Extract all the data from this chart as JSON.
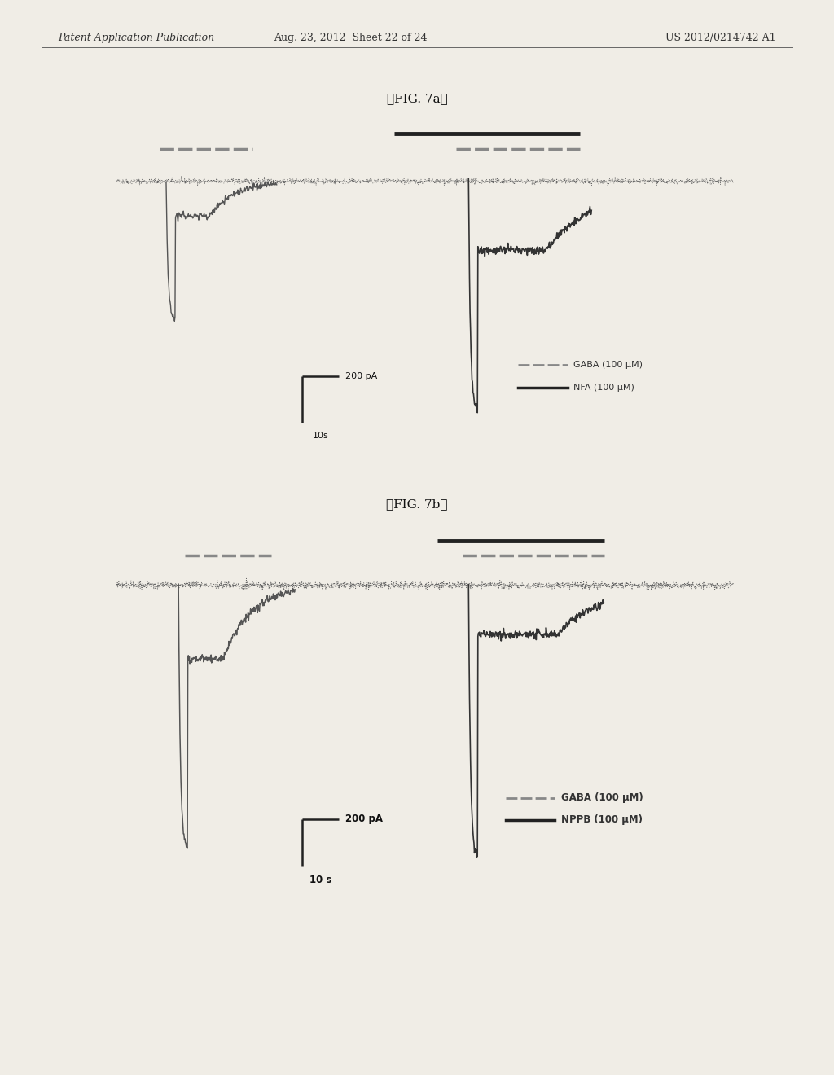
{
  "header_left": "Patent Application Publication",
  "header_mid": "Aug. 23, 2012  Sheet 22 of 24",
  "header_right": "US 2012/0214742 A1",
  "fig7a_title": "『FIG. 7a』",
  "fig7b_title": "『FIG. 7b』",
  "fig7a_legend1": "GABA (100 μM)",
  "fig7a_legend2": "NFA (100 μM)",
  "fig7b_legend1": "GABA (100 μM)",
  "fig7b_legend2": "NPPB (100 μM)",
  "scale_bar_current": "200 pA",
  "scale_bar_time_a": "10s",
  "scale_bar_time_b": "10 s",
  "page_bg": "#f0ede6",
  "panel_bg": "#d8d4cc",
  "trace_gray": "#777777",
  "trace_dark": "#222222",
  "baseline_color": "#555555",
  "header_color": "#333333"
}
